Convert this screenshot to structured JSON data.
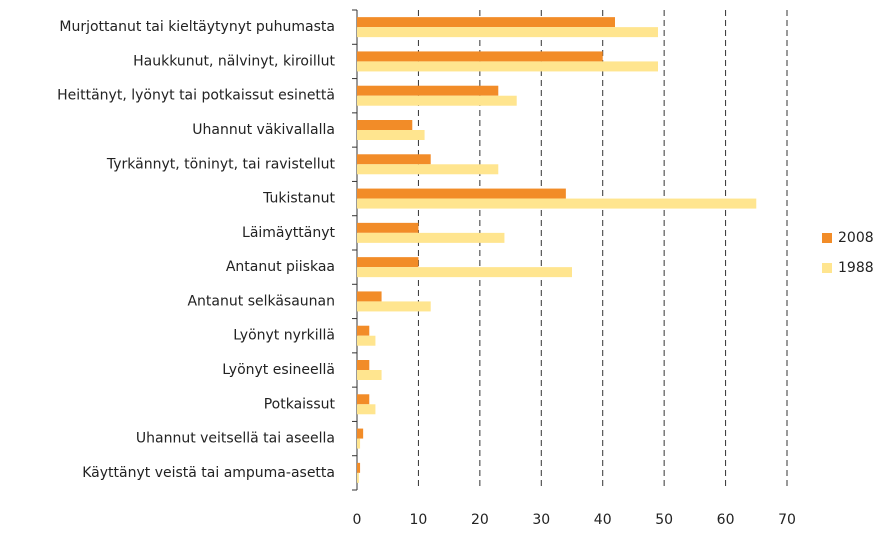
{
  "chart_data": {
    "type": "hbar",
    "categories": [
      "Murjottanut tai kieltäytynyt puhumasta",
      "Haukkunut, nälvinyt, kiroillut",
      "Heittänyt, lyönyt tai potkaissut esinettä",
      "Uhannut väkivallalla",
      "Tyrkännyt, töninyt, tai ravistellut",
      "Tukistanut",
      "Läimäyttänyt",
      "Antanut piiskaa",
      "Antanut selkäsaunan",
      "Lyönyt nyrkillä",
      "Lyönyt esineellä",
      "Potkaissut",
      "Uhannut veitsellä tai aseella",
      "Käyttänyt veistä tai ampuma-asetta"
    ],
    "series": [
      {
        "name": "2008",
        "color": "#f28c28",
        "values": [
          42,
          40,
          23,
          9,
          12,
          34,
          10,
          10,
          4,
          2,
          2,
          2,
          1,
          0.5
        ]
      },
      {
        "name": "1988",
        "color": "#ffe58f",
        "values": [
          49,
          49,
          26,
          11,
          23,
          65,
          24,
          35,
          12,
          3,
          4,
          3,
          0.5,
          0.3
        ]
      }
    ],
    "xlim": [
      0,
      70
    ],
    "xticks": [
      0,
      10,
      20,
      30,
      40,
      50,
      60,
      70
    ],
    "grid": true,
    "legend": "right"
  }
}
